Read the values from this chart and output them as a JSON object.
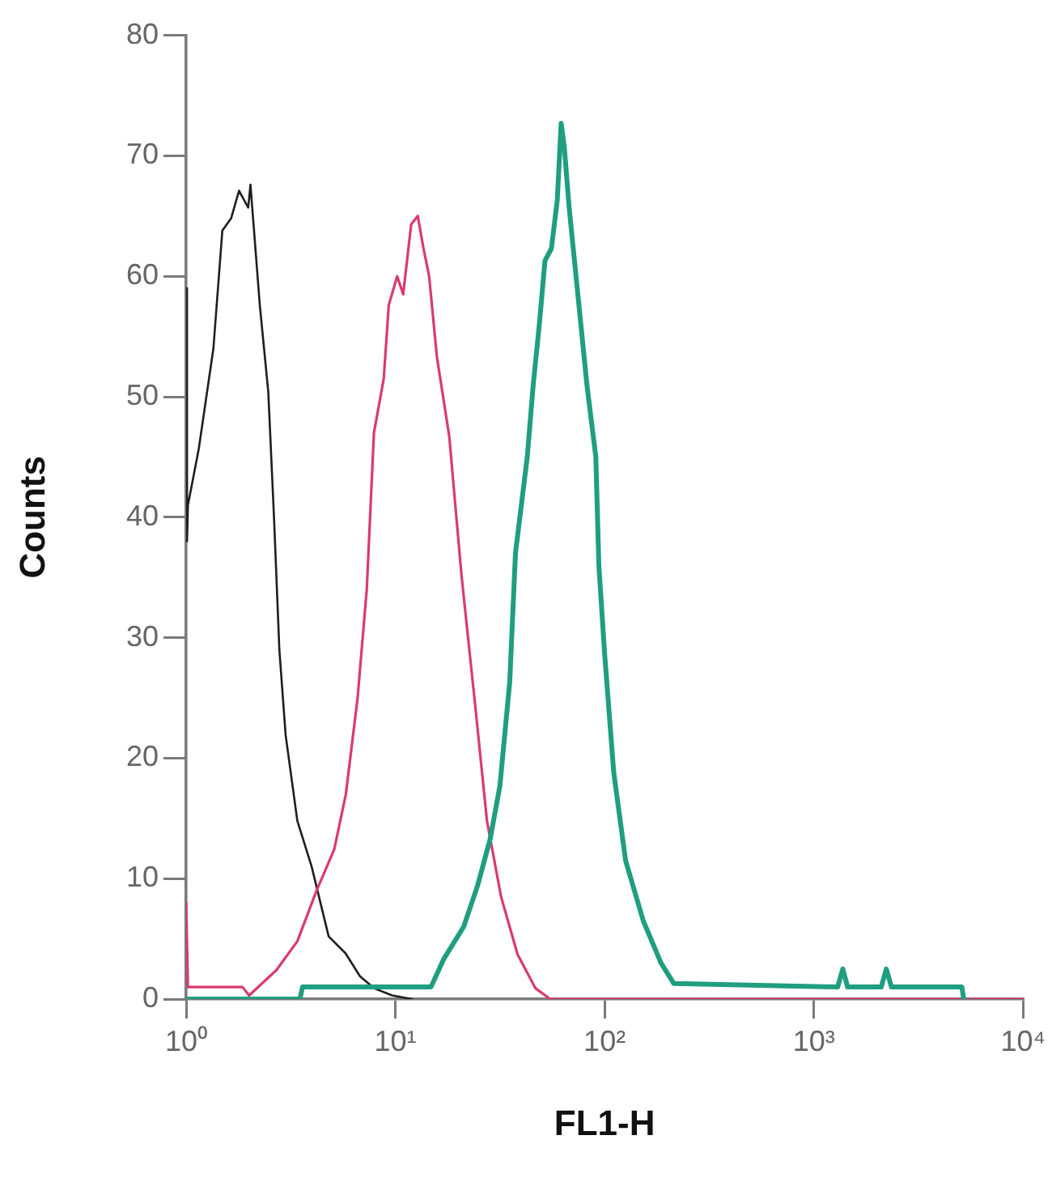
{
  "chart_data": {
    "type": "line",
    "xlabel": "FL1-H",
    "ylabel": "Counts",
    "log": "x",
    "grid": false,
    "legend": false,
    "marker": "none",
    "line_style": "solid",
    "xlim": [
      1,
      10000
    ],
    "xticks": [
      {
        "value": 1,
        "label": "10⁰"
      },
      {
        "value": 10,
        "label": "10¹"
      },
      {
        "value": 100,
        "label": "10²"
      },
      {
        "value": 1000,
        "label": "10³"
      },
      {
        "value": 10000,
        "label": "10⁴"
      }
    ],
    "ylim": [
      0,
      80
    ],
    "yticks": [
      0,
      10,
      20,
      30,
      40,
      50,
      60,
      70,
      80
    ],
    "series": [
      {
        "color": "#1f9e80",
        "x": [
          1,
          3.5,
          3.6,
          14.3,
          14.8,
          17,
          21.2,
          24.7,
          28.4,
          31.6,
          35.2,
          37.5,
          42.7,
          45.6,
          48.7,
          51.9,
          55.7,
          59.4,
          62,
          64.2,
          67.7,
          74.7,
          82.3,
          90.8,
          93.9,
          100,
          110.6,
          126,
          153,
          186,
          214,
          1300,
          1375,
          1450,
          2100,
          2220,
          2350,
          5100,
          5200
        ],
        "values": [
          0,
          0,
          1,
          1,
          1,
          3.3,
          6,
          9.4,
          13.3,
          17.7,
          26.3,
          37,
          45,
          51,
          55.9,
          61.3,
          62.3,
          66.3,
          72.7,
          70.7,
          65.7,
          58.3,
          51,
          45,
          36,
          28.7,
          18.8,
          11.5,
          6.5,
          3,
          1.3,
          1,
          2.5,
          1,
          1,
          2.5,
          1,
          1,
          0
        ]
      },
      {
        "color": "#d93a72",
        "x": [
          1,
          1.02,
          1.86,
          2,
          2.7,
          3.4,
          4.2,
          5.1,
          5.8,
          6.6,
          7.3,
          7.9,
          8.8,
          9.3,
          10.2,
          10.9,
          11.9,
          12.8,
          13.6,
          14.5,
          15.8,
          18.1,
          20.7,
          24.1,
          27.4,
          32,
          38.4,
          46.7,
          55,
          10000
        ],
        "values": [
          8,
          1,
          1,
          0.3,
          2.4,
          4.8,
          9,
          12.4,
          17,
          25,
          34,
          47,
          51.5,
          57.6,
          60,
          58.5,
          64.3,
          65,
          62.4,
          60,
          53.3,
          46.7,
          35.2,
          24.3,
          14.8,
          8.5,
          3.7,
          0.9,
          0,
          0
        ]
      },
      {
        "color": "#1e1e1e",
        "x": [
          1,
          1.01,
          1.02,
          1.15,
          1.35,
          1.49,
          1.64,
          1.79,
          1.98,
          2.03,
          2.25,
          2.47,
          2.63,
          2.79,
          2.99,
          3.4,
          3.98,
          4.8,
          5.78,
          6.77,
          7.9,
          9.66,
          12
        ],
        "values": [
          59,
          38,
          41,
          45.7,
          54,
          63.8,
          64.8,
          67.1,
          65.7,
          67.6,
          57.6,
          50.4,
          40,
          29,
          21.9,
          14.8,
          11,
          5.2,
          3.8,
          1.9,
          0.9,
          0.3,
          0
        ]
      }
    ]
  }
}
